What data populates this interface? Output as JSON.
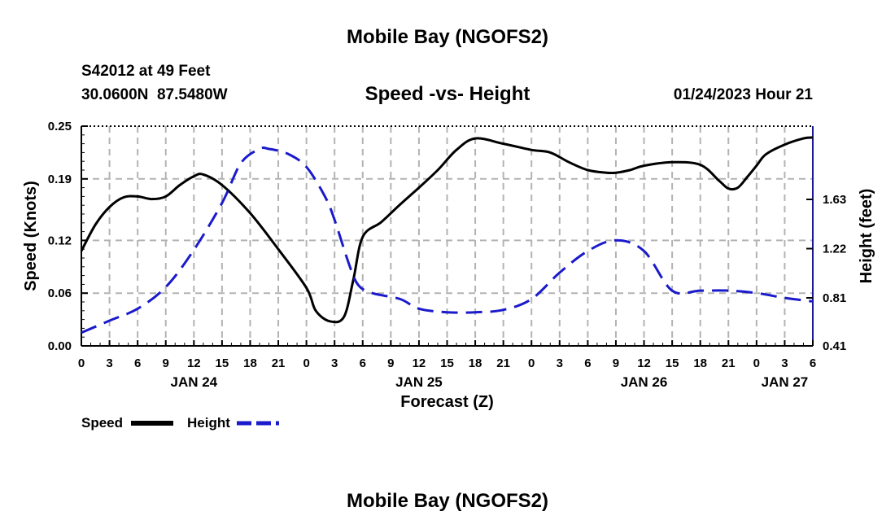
{
  "header": {
    "title": "Mobile Bay (NGOFS2)",
    "station": "S42012 at 49 Feet",
    "coords": "30.0600N  87.5480W",
    "subtitle": "Speed -vs- Height",
    "timestamp": "01/24/2023 Hour 21"
  },
  "footer": {
    "title": "Mobile Bay (NGOFS2)"
  },
  "colors": {
    "speed": "#000000",
    "height": "#1a1acc",
    "grid": "#b3b3b3",
    "right_axis": "#1a1a99"
  },
  "chart_data": {
    "type": "line",
    "title": "Speed -vs- Height",
    "xlabel": "Forecast (Z)",
    "ylabel": "Speed (Knots)",
    "y2label": "Height (feet)",
    "x_unit": "hours since 2023-01-24 00Z",
    "xlim": [
      0,
      78
    ],
    "ylim": [
      0.0,
      0.25
    ],
    "y2lim": [
      0.41,
      2.24
    ],
    "x_ticks": [
      0,
      3,
      6,
      9,
      12,
      15,
      18,
      21,
      24,
      27,
      30,
      33,
      36,
      39,
      42,
      45,
      48,
      51,
      54,
      57,
      60,
      63,
      66,
      69,
      72,
      75,
      78
    ],
    "x_tick_labels": [
      "0",
      "3",
      "6",
      "9",
      "12",
      "15",
      "18",
      "21",
      "0",
      "3",
      "6",
      "9",
      "12",
      "15",
      "18",
      "21",
      "0",
      "3",
      "6",
      "9",
      "12",
      "15",
      "18",
      "21",
      "0",
      "3",
      "6"
    ],
    "date_labels": [
      {
        "x": 12,
        "label": "JAN 24"
      },
      {
        "x": 36,
        "label": "JAN 25"
      },
      {
        "x": 60,
        "label": "JAN 26"
      },
      {
        "x": 75,
        "label": "JAN 27"
      }
    ],
    "y_ticks": [
      0.0,
      0.06,
      0.12,
      0.19,
      0.25
    ],
    "y_tick_labels": [
      "0.00",
      "0.06",
      "0.12",
      "0.19",
      "0.25"
    ],
    "y2_ticks": [
      0.41,
      0.81,
      1.22,
      1.63
    ],
    "y2_tick_labels": [
      "0.41",
      "0.81",
      "1.22",
      "1.63"
    ],
    "grid": true,
    "legend": [
      "Speed",
      "Height"
    ],
    "series": [
      {
        "name": "Speed",
        "axis": "left",
        "style": "solid",
        "x": [
          0,
          1.5,
          3,
          4.5,
          6,
          7.5,
          9,
          10.5,
          12,
          13,
          15,
          18,
          21,
          24,
          25,
          26.5,
          28,
          29,
          30,
          32,
          34,
          36,
          38,
          40,
          42,
          45,
          48,
          50,
          52,
          54,
          56,
          57,
          58.5,
          60,
          63,
          66,
          68,
          69,
          70,
          71,
          72,
          73,
          75,
          77,
          78
        ],
        "y": [
          0.108,
          0.138,
          0.158,
          0.169,
          0.17,
          0.167,
          0.17,
          0.183,
          0.193,
          0.195,
          0.183,
          0.151,
          0.11,
          0.066,
          0.04,
          0.028,
          0.033,
          0.075,
          0.124,
          0.141,
          0.161,
          0.18,
          0.2,
          0.223,
          0.236,
          0.23,
          0.223,
          0.22,
          0.209,
          0.2,
          0.197,
          0.197,
          0.2,
          0.205,
          0.209,
          0.206,
          0.188,
          0.179,
          0.18,
          0.192,
          0.205,
          0.218,
          0.229,
          0.236,
          0.237
        ]
      },
      {
        "name": "Height",
        "axis": "right",
        "style": "dashed",
        "x": [
          0,
          3,
          6,
          9,
          12,
          15,
          17,
          19,
          20,
          22,
          24,
          26,
          27,
          28.5,
          29.5,
          31,
          34,
          36,
          39,
          42,
          45,
          48,
          51,
          54,
          57,
          60,
          63,
          66,
          69,
          72,
          75,
          78
        ],
        "y": [
          0.52,
          0.62,
          0.72,
          0.9,
          1.21,
          1.6,
          1.93,
          2.05,
          2.05,
          2.01,
          1.9,
          1.65,
          1.46,
          1.1,
          0.92,
          0.85,
          0.8,
          0.72,
          0.69,
          0.69,
          0.71,
          0.8,
          1.02,
          1.2,
          1.29,
          1.2,
          0.87,
          0.87,
          0.87,
          0.85,
          0.81,
          0.78
        ]
      }
    ]
  }
}
